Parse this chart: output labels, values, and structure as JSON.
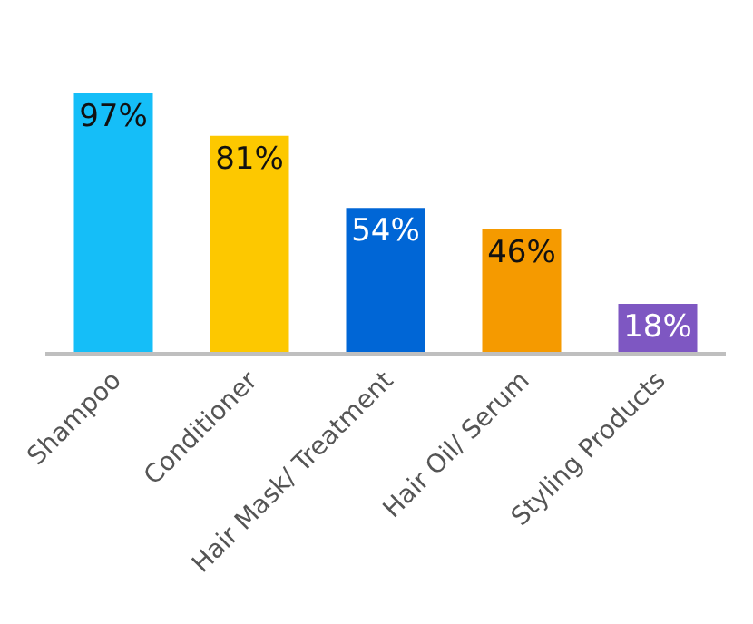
{
  "chart_data": {
    "type": "bar",
    "categories": [
      "Shampoo",
      "Conditioner",
      "Hair Mask/ Treatment",
      "Hair Oil/ Serum",
      "Styling Products"
    ],
    "values": [
      97,
      81,
      54,
      46,
      18
    ],
    "colors": [
      "#15bef8",
      "#fdc800",
      "#0066d6",
      "#f59a00",
      "#7e57c2"
    ],
    "value_labels": [
      "97%",
      "81%",
      "54%",
      "46%",
      "18%"
    ],
    "tick_labels": "x"
  }
}
